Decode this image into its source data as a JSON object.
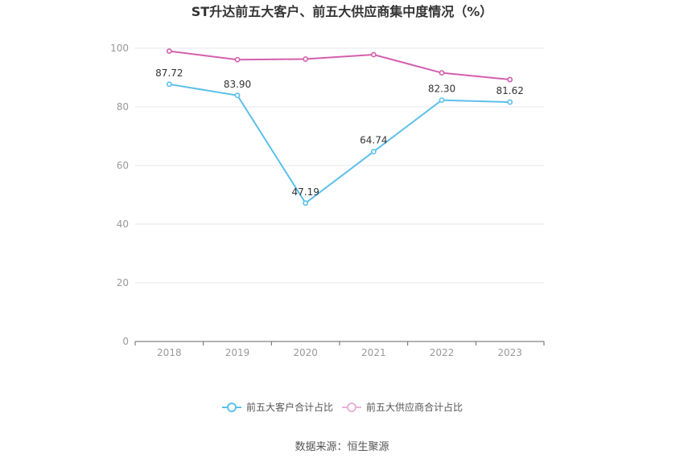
{
  "chart_data": {
    "type": "line",
    "title": "ST升达前五大客户、前五大供应商集中度情况（%）",
    "categories": [
      "2018",
      "2019",
      "2020",
      "2021",
      "2022",
      "2023"
    ],
    "ylim": [
      0,
      100
    ],
    "yticks": [
      "0",
      "20",
      "40",
      "60",
      "80",
      "100"
    ],
    "grid": true,
    "legend_position": "bottom",
    "series": [
      {
        "name": "前五大客户合计占比",
        "values": [
          87.72,
          83.9,
          47.19,
          64.74,
          82.3,
          81.62
        ],
        "labels": [
          "87.72",
          "83.90",
          "47.19",
          "64.74",
          "82.30",
          "81.62"
        ],
        "color": "#5bc0eb"
      },
      {
        "name": "前五大供应商合计占比",
        "values": [
          99.0,
          96.1,
          96.3,
          97.8,
          91.6,
          89.3
        ],
        "labels": [],
        "color": "#d35fad"
      }
    ]
  },
  "source": "数据来源：恒生聚源"
}
